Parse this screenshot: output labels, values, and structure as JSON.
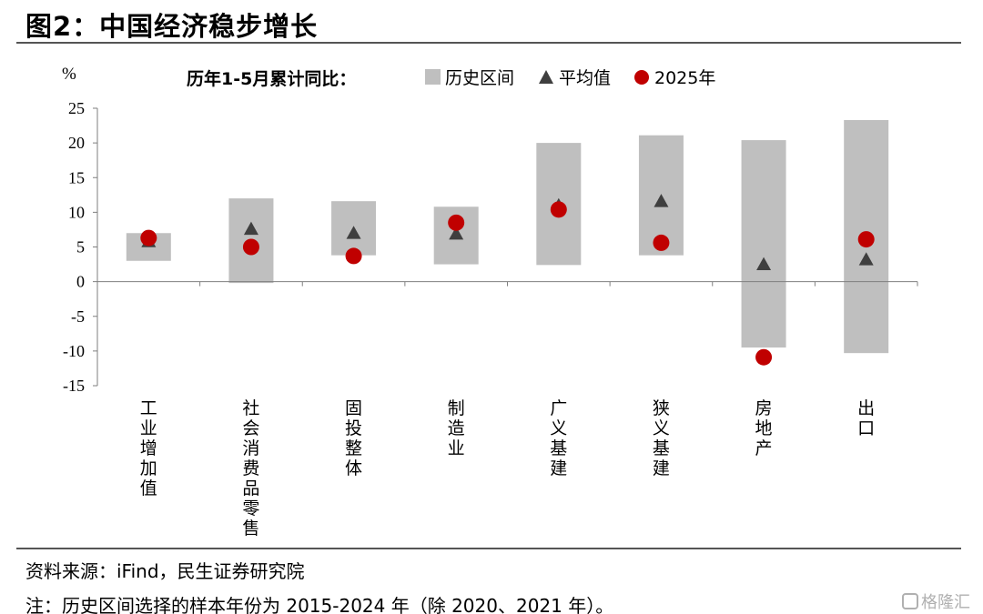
{
  "figure": {
    "title": "图2：中国经济稳步增长",
    "source": "资料来源：iFind，民生证券研究院",
    "note": "注：历史区间选择的样本年份为 2015-2024 年（除 2020、2021 年）。",
    "watermark": "格隆汇"
  },
  "chart_data": {
    "type": "range-dot",
    "unit_label": "%",
    "legend_prefix": "历年1-5月累计同比：",
    "legend": [
      {
        "name": "历史区间",
        "marker": "square",
        "color": "#bfbfbf"
      },
      {
        "name": "平均值",
        "marker": "triangle",
        "color": "#3f3f3f"
      },
      {
        "name": "2025年",
        "marker": "circle",
        "color": "#c00000"
      }
    ],
    "ylim": [
      -15,
      25
    ],
    "yticks": [
      -15,
      -10,
      -5,
      0,
      5,
      10,
      15,
      20,
      25
    ],
    "grid": false,
    "legend_position": "top",
    "categories": [
      "工业增加值",
      "社会消费品零售",
      "固投整体",
      "制造业",
      "广义基建",
      "狭义基建",
      "房地产",
      "出口"
    ],
    "series": [
      {
        "name": "历史区间",
        "kind": "range",
        "values": [
          [
            3.0,
            7.0
          ],
          [
            -0.2,
            12.0
          ],
          [
            3.8,
            11.6
          ],
          [
            2.5,
            10.8
          ],
          [
            2.4,
            20.0
          ],
          [
            3.8,
            21.1
          ],
          [
            -9.5,
            20.4
          ],
          [
            -10.3,
            23.3
          ]
        ]
      },
      {
        "name": "平均值",
        "kind": "triangle",
        "values": [
          5.8,
          7.6,
          7.0,
          6.9,
          11.0,
          11.6,
          2.5,
          3.2
        ]
      },
      {
        "name": "2025年",
        "kind": "circle",
        "values": [
          6.3,
          5.0,
          3.7,
          8.5,
          10.4,
          5.6,
          -10.9,
          6.1
        ]
      }
    ],
    "colors": {
      "range": "#bfbfbf",
      "mean": "#3f3f3f",
      "current": "#c00000",
      "axis": "#7f7f7f"
    }
  }
}
